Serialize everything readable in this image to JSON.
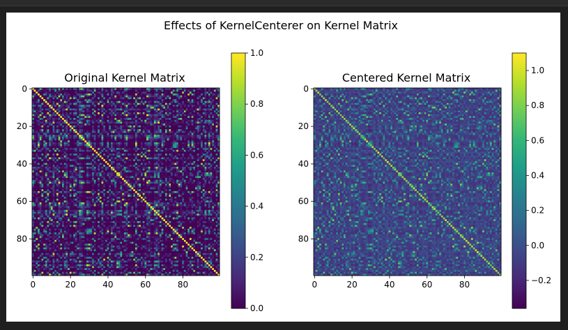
{
  "chart_data": {
    "type": "heatmap",
    "suptitle": "Effects of KernelCenterer on Kernel Matrix",
    "colormap": [
      "#440154",
      "#482878",
      "#3e4989",
      "#31688e",
      "#26828e",
      "#1f9e89",
      "#35b779",
      "#6ece58",
      "#b5de2b",
      "#fde725"
    ],
    "panels": [
      {
        "title": "Original Kernel Matrix",
        "size": 100,
        "x_ticks": [
          "0",
          "20",
          "40",
          "60",
          "80"
        ],
        "y_ticks": [
          "0",
          "20",
          "40",
          "60",
          "80"
        ],
        "colorbar": {
          "vmin": 0.0,
          "vmax": 1.0,
          "ticks": [
            "0.0",
            "0.2",
            "0.4",
            "0.6",
            "0.8",
            "1.0"
          ],
          "tick_values": [
            0.0,
            0.2,
            0.4,
            0.6,
            0.8,
            1.0
          ]
        },
        "diagonal_value": 1.0,
        "off_diagonal_range": [
          0.0,
          1.0
        ]
      },
      {
        "title": "Centered Kernel Matrix",
        "size": 100,
        "x_ticks": [
          "0",
          "20",
          "40",
          "60",
          "80"
        ],
        "y_ticks": [
          "0",
          "20",
          "40",
          "60",
          "80"
        ],
        "colorbar": {
          "vmin": -0.36,
          "vmax": 1.1,
          "ticks": [
            "−0.2",
            "0.0",
            "0.2",
            "0.4",
            "0.6",
            "0.8",
            "1.0"
          ],
          "tick_values": [
            -0.2,
            0.0,
            0.2,
            0.4,
            0.6,
            0.8,
            1.0
          ]
        },
        "diagonal_value": 0.6,
        "off_diagonal_range": [
          -0.36,
          1.1
        ]
      }
    ]
  }
}
